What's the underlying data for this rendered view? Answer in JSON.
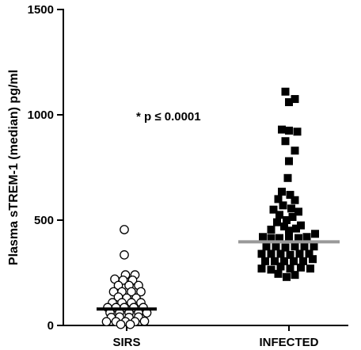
{
  "chart_data": {
    "type": "scatter",
    "title": "",
    "xlabel": "",
    "ylabel": "Plasma sTREM-1 (median) pg/ml",
    "ylim": [
      0,
      1500
    ],
    "yticks": [
      0,
      500,
      1000,
      1500
    ],
    "categories": [
      "SIRS",
      "INFECTED"
    ],
    "annotation": "* p ≤ 0.0001",
    "grid": false,
    "colors": {
      "axis": "#000000",
      "sirs_median": "#000000",
      "infected_median": "#999999"
    },
    "series": [
      {
        "category": "SIRS",
        "marker": "open-circle",
        "median": 78,
        "points": [
          {
            "x": -0.02,
            "y": 455
          },
          {
            "x": -0.02,
            "y": 335
          },
          {
            "x": -0.01,
            "y": 240
          },
          {
            "x": 0.07,
            "y": 240
          },
          {
            "x": -0.1,
            "y": 220
          },
          {
            "x": -0.03,
            "y": 215
          },
          {
            "x": 0.05,
            "y": 215
          },
          {
            "x": -0.07,
            "y": 190
          },
          {
            "x": 0.02,
            "y": 190
          },
          {
            "x": 0.1,
            "y": 190
          },
          {
            "x": -0.11,
            "y": 160
          },
          {
            "x": -0.04,
            "y": 160
          },
          {
            "x": 0.04,
            "y": 160
          },
          {
            "x": 0.12,
            "y": 160
          },
          {
            "x": -0.07,
            "y": 135
          },
          {
            "x": 0.0,
            "y": 130
          },
          {
            "x": 0.08,
            "y": 130
          },
          {
            "x": -0.12,
            "y": 108
          },
          {
            "x": -0.04,
            "y": 108
          },
          {
            "x": 0.04,
            "y": 108
          },
          {
            "x": 0.12,
            "y": 108
          },
          {
            "x": -0.16,
            "y": 85
          },
          {
            "x": -0.09,
            "y": 85
          },
          {
            "x": -0.02,
            "y": 85
          },
          {
            "x": 0.06,
            "y": 85
          },
          {
            "x": 0.14,
            "y": 85
          },
          {
            "x": -0.14,
            "y": 60
          },
          {
            "x": -0.06,
            "y": 60
          },
          {
            "x": 0.02,
            "y": 60
          },
          {
            "x": 0.1,
            "y": 60
          },
          {
            "x": 0.17,
            "y": 60
          },
          {
            "x": -0.13,
            "y": 38
          },
          {
            "x": -0.06,
            "y": 40
          },
          {
            "x": 0.02,
            "y": 38
          },
          {
            "x": 0.1,
            "y": 40
          },
          {
            "x": -0.17,
            "y": 18
          },
          {
            "x": -0.09,
            "y": 18
          },
          {
            "x": -0.01,
            "y": 18
          },
          {
            "x": 0.07,
            "y": 18
          },
          {
            "x": 0.15,
            "y": 20
          },
          {
            "x": -0.05,
            "y": 5
          },
          {
            "x": 0.03,
            "y": 5
          }
        ]
      },
      {
        "category": "INFECTED",
        "marker": "filled-square",
        "median": 397,
        "points": [
          {
            "x": -0.03,
            "y": 1110
          },
          {
            "x": 0.05,
            "y": 1075
          },
          {
            "x": 0.0,
            "y": 1060
          },
          {
            "x": -0.06,
            "y": 930
          },
          {
            "x": 0.0,
            "y": 925
          },
          {
            "x": 0.07,
            "y": 920
          },
          {
            "x": -0.03,
            "y": 875
          },
          {
            "x": 0.05,
            "y": 830
          },
          {
            "x": 0.0,
            "y": 780
          },
          {
            "x": -0.01,
            "y": 700
          },
          {
            "x": -0.06,
            "y": 635
          },
          {
            "x": 0.01,
            "y": 620
          },
          {
            "x": -0.09,
            "y": 600
          },
          {
            "x": 0.05,
            "y": 595
          },
          {
            "x": -0.05,
            "y": 570
          },
          {
            "x": 0.02,
            "y": 555
          },
          {
            "x": -0.13,
            "y": 550
          },
          {
            "x": 0.08,
            "y": 540
          },
          {
            "x": -0.08,
            "y": 525
          },
          {
            "x": 0.03,
            "y": 515
          },
          {
            "x": -0.02,
            "y": 500
          },
          {
            "x": -0.1,
            "y": 490
          },
          {
            "x": 0.1,
            "y": 475
          },
          {
            "x": -0.04,
            "y": 470
          },
          {
            "x": 0.06,
            "y": 460
          },
          {
            "x": 0.0,
            "y": 450
          },
          {
            "x": -0.15,
            "y": 455
          },
          {
            "x": -0.22,
            "y": 420
          },
          {
            "x": -0.15,
            "y": 415
          },
          {
            "x": -0.08,
            "y": 415
          },
          {
            "x": 0.0,
            "y": 415
          },
          {
            "x": 0.08,
            "y": 415
          },
          {
            "x": 0.15,
            "y": 420
          },
          {
            "x": 0.22,
            "y": 435
          },
          {
            "x": -0.19,
            "y": 375
          },
          {
            "x": -0.11,
            "y": 375
          },
          {
            "x": -0.03,
            "y": 370
          },
          {
            "x": 0.05,
            "y": 375
          },
          {
            "x": 0.13,
            "y": 375
          },
          {
            "x": 0.21,
            "y": 375
          },
          {
            "x": -0.23,
            "y": 340
          },
          {
            "x": -0.15,
            "y": 340
          },
          {
            "x": -0.07,
            "y": 340
          },
          {
            "x": 0.01,
            "y": 335
          },
          {
            "x": 0.09,
            "y": 340
          },
          {
            "x": 0.17,
            "y": 340
          },
          {
            "x": -0.2,
            "y": 305
          },
          {
            "x": -0.12,
            "y": 305
          },
          {
            "x": -0.04,
            "y": 305
          },
          {
            "x": 0.04,
            "y": 305
          },
          {
            "x": 0.12,
            "y": 305
          },
          {
            "x": 0.2,
            "y": 315
          },
          {
            "x": -0.23,
            "y": 270
          },
          {
            "x": -0.15,
            "y": 265
          },
          {
            "x": -0.07,
            "y": 280
          },
          {
            "x": 0.01,
            "y": 270
          },
          {
            "x": 0.1,
            "y": 275
          },
          {
            "x": 0.18,
            "y": 270
          },
          {
            "x": -0.09,
            "y": 245
          },
          {
            "x": 0.05,
            "y": 240
          },
          {
            "x": -0.02,
            "y": 230
          }
        ]
      }
    ]
  }
}
